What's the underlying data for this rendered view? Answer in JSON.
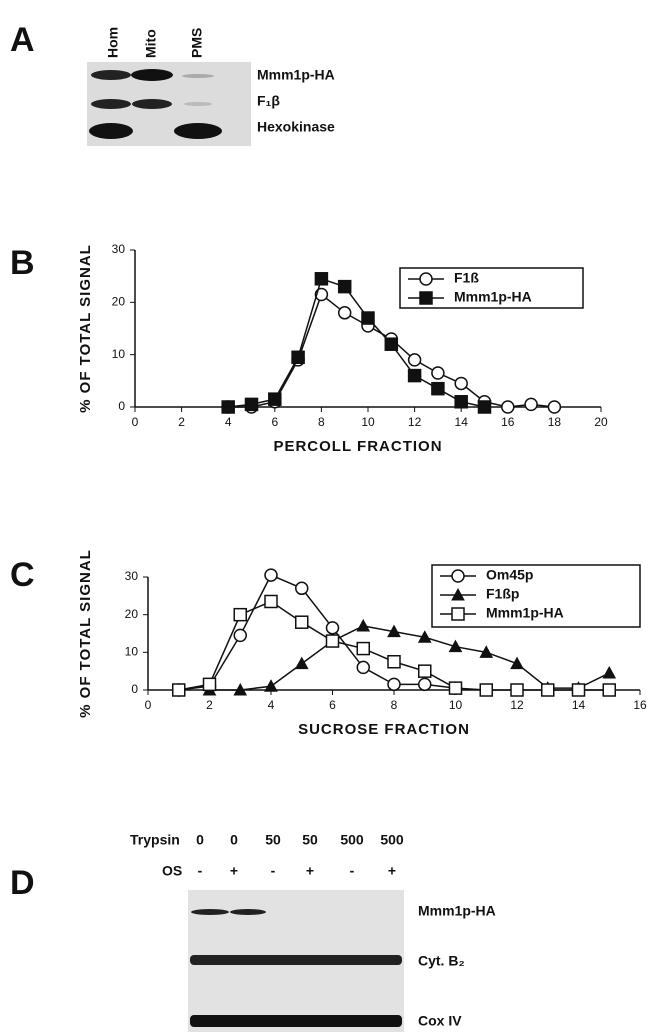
{
  "panel_a": {
    "label": "A",
    "lanes": [
      "Hom",
      "Mito",
      "PMS"
    ],
    "bands": [
      "Mmm1p-HA",
      "F₁β",
      "Hexokinase"
    ]
  },
  "chart_data": [
    {
      "type": "line",
      "label": "B",
      "ylabel": "% OF TOTAL SIGNAL",
      "xlabel": "PERCOLL FRACTION",
      "xlim": [
        0,
        20
      ],
      "xticks": [
        0,
        2,
        4,
        6,
        8,
        10,
        12,
        14,
        16,
        18,
        20
      ],
      "ylim": [
        0,
        30
      ],
      "yticks": [
        0,
        10,
        20,
        30
      ],
      "series": [
        {
          "name": "F1ß",
          "marker": "circle-open",
          "x": [
            4,
            5,
            6,
            7,
            8,
            9,
            10,
            11,
            12,
            13,
            14,
            15,
            16,
            17,
            18
          ],
          "values": [
            0,
            0,
            1,
            9,
            21.5,
            18,
            15.5,
            13,
            9,
            6.5,
            4.5,
            1,
            0,
            0.5,
            0
          ]
        },
        {
          "name": "Mmm1p-HA",
          "marker": "square-filled",
          "x": [
            4,
            5,
            6,
            7,
            8,
            9,
            10,
            11,
            12,
            13,
            14,
            15
          ],
          "values": [
            0,
            0.5,
            1.5,
            9.5,
            24.5,
            23,
            17,
            12,
            6,
            3.5,
            1,
            0
          ]
        }
      ]
    },
    {
      "type": "line",
      "label": "C",
      "ylabel": "% OF TOTAL SIGNAL",
      "xlabel": "SUCROSE FRACTION",
      "xlim": [
        0,
        16
      ],
      "xticks": [
        0,
        2,
        4,
        6,
        8,
        10,
        12,
        14,
        16
      ],
      "ylim": [
        0,
        30
      ],
      "yticks": [
        0,
        10,
        20,
        30
      ],
      "series": [
        {
          "name": "Om45p",
          "marker": "circle-open",
          "x": [
            1,
            2,
            3,
            4,
            5,
            6,
            7,
            8,
            9,
            10
          ],
          "values": [
            0,
            1,
            14.5,
            30.5,
            27,
            16.5,
            6,
            1.5,
            1.5,
            0.5
          ]
        },
        {
          "name": "F1ßp",
          "marker": "triangle-filled",
          "x": [
            2,
            3,
            4,
            5,
            6,
            7,
            8,
            9,
            10,
            11,
            12,
            13,
            14,
            15
          ],
          "values": [
            0,
            0,
            1,
            7,
            13,
            17,
            15.5,
            14,
            11.5,
            10,
            7,
            0.5,
            0.5,
            4.5
          ]
        },
        {
          "name": "Mmm1p-HA",
          "marker": "square-open",
          "x": [
            1,
            2,
            3,
            4,
            5,
            6,
            7,
            8,
            9,
            10,
            11,
            12,
            13,
            14,
            15
          ],
          "values": [
            0,
            1.5,
            20,
            23.5,
            18,
            13,
            11,
            7.5,
            5,
            0.5,
            0,
            0,
            0,
            0,
            0
          ]
        }
      ]
    }
  ],
  "panel_d": {
    "label": "D",
    "trypsin_label": "Trypsin",
    "trypsin": [
      "0",
      "0",
      "50",
      "50",
      "500",
      "500"
    ],
    "os_label": "OS",
    "os": [
      "-",
      "+",
      "-",
      "+",
      "-",
      "+"
    ],
    "bands": [
      "Mmm1p-HA",
      "Cyt. B₂",
      "Cox IV"
    ]
  }
}
